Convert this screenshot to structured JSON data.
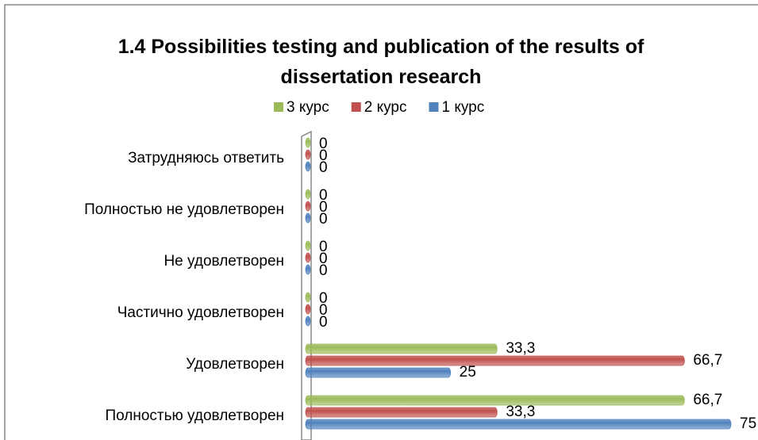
{
  "chart_data": {
    "type": "bar",
    "orientation": "horizontal",
    "title": "1.4 Possibilities testing and publication of the results of dissertation research",
    "categories": [
      "Затрудняюсь ответить",
      "Полностью не удовлетворен",
      "Не удовлетворен",
      "Частично удовлетворен",
      "Удовлетворен",
      "Полностью удовлетворен"
    ],
    "series": [
      {
        "name": "1 курс",
        "color": "#4f81bd",
        "values": [
          0,
          0,
          0,
          0,
          25,
          75
        ]
      },
      {
        "name": "2 курс",
        "color": "#c0504d",
        "values": [
          0,
          0,
          0,
          0,
          66.7,
          33.3
        ],
        "value_labels": [
          "0",
          "0",
          "0",
          "0",
          "66,7",
          "33,3"
        ]
      },
      {
        "name": "3 курс",
        "color": "#9bbb59",
        "values": [
          0,
          0,
          0,
          0,
          33.3,
          66.7
        ],
        "value_labels": [
          "0",
          "0",
          "0",
          "0",
          "33,3",
          "66,7"
        ]
      }
    ],
    "xlim": [
      0,
      75
    ],
    "legend": "top"
  }
}
